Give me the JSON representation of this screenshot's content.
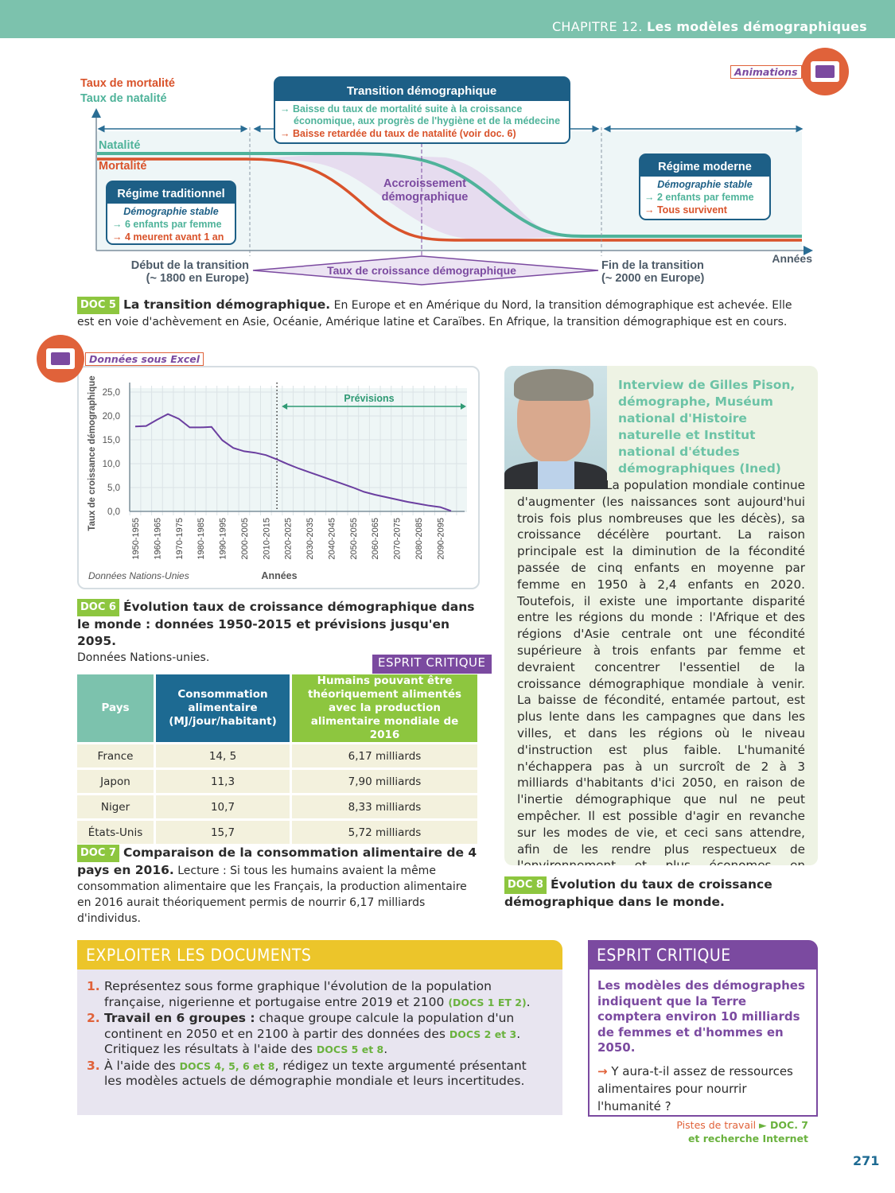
{
  "header": {
    "chapter": "CHAPITRE 12.",
    "title": "Les modèles démographiques"
  },
  "doc5": {
    "animations_label": "Animations",
    "legend_mortality": "Taux de mortalité",
    "legend_natality": "Taux de natalité",
    "natalite": "Natalité",
    "mortalite": "Mortalité",
    "transition_title": "Transition démographique",
    "transition_l1": "→ Baisse du taux de mortalité suite à la croissance",
    "transition_l2": "économique, aux progrès de l'hygiène et de la médecine",
    "transition_l3": "→ Baisse retardée du taux de natalité (voir doc. 6)",
    "trad_title": "Régime traditionnel",
    "trad_l1": "Démographie stable",
    "trad_l2": "→ 6 enfants par femme",
    "trad_l3": "→ 4 meurent avant 1 an",
    "mod_title": "Régime moderne",
    "mod_l1": "Démographie stable",
    "mod_l2": "→ 2 enfants par femme",
    "mod_l3": "→ Tous survivent",
    "accroissement_1": "Accroissement",
    "accroissement_2": "démographique",
    "debut_1": "Début de la transition",
    "debut_2": "(~ 1800 en Europe)",
    "fin_1": "Fin de la transition",
    "fin_2": "(~ 2000 en Europe)",
    "taux_croissance": "Taux de croissance démographique",
    "annees": "Années",
    "badge": "DOC 5",
    "caption_title": "La transition démographique.",
    "caption_text": " En Europe et en Amérique du Nord, la transition démographique est achevée. Elle est en voie d'achèvement en Asie, Océanie, Amérique latine et Caraïbes. En Afrique, la transition démographique est en cours."
  },
  "doc6": {
    "excel_label": "Données sous Excel",
    "source": "Données Nations-Unies",
    "badge": "DOC 6",
    "caption_title": "Évolution taux de croissance démographique dans le monde : données 1950-2015 et prévisions jusqu'en 2095.",
    "caption_text": "Données Nations-unies."
  },
  "chart_data": {
    "type": "line",
    "xlabel": "Années",
    "ylabel": "Taux de croissance démographique",
    "ylim": [
      0,
      25
    ],
    "yticks": [
      "0,0",
      "5,0",
      "10,0",
      "15,0",
      "20,0",
      "25,0"
    ],
    "x": [
      "1950-1955",
      "1955-1960",
      "1960-1965",
      "1965-1970",
      "1970-1975",
      "1975-1980",
      "1980-1985",
      "1985-1990",
      "1990-1995",
      "1995-2000",
      "2000-2005",
      "2005-2010",
      "2010-2015",
      "2015-2020",
      "2020-2025",
      "2025-2030",
      "2030-2035",
      "2035-2040",
      "2040-2045",
      "2045-2050",
      "2050-2055",
      "2055-2060",
      "2060-2065",
      "2065-2070",
      "2070-2075",
      "2075-2080",
      "2080-2085",
      "2085-2090",
      "2090-2095",
      "2095-2100"
    ],
    "xtick_labels": [
      "1950-1955",
      "1960-1965",
      "1970-1975",
      "1980-1985",
      "1990-1995",
      "2000-2005",
      "2010-2015",
      "2020-2025",
      "2030-2035",
      "2040-2045",
      "2050-2055",
      "2060-2065",
      "2070-2075",
      "2080-2085",
      "2090-2095"
    ],
    "values": [
      17.8,
      17.9,
      19.2,
      20.4,
      19.4,
      17.6,
      17.6,
      17.7,
      14.9,
      13.3,
      12.6,
      12.3,
      11.8,
      10.9,
      9.9,
      9.0,
      8.2,
      7.4,
      6.6,
      5.8,
      5.0,
      4.1,
      3.5,
      3.0,
      2.5,
      2.0,
      1.6,
      1.2,
      0.9,
      0.1
    ],
    "forecast_label": "Prévisions",
    "forecast_from": "2015",
    "grid": true,
    "line_color": "#6b3fa0"
  },
  "doc7": {
    "esprit_label": "ESPRIT CRITIQUE",
    "headers": [
      "Pays",
      "Consommation alimentaire (MJ/jour/habitant)",
      "Humains pouvant être théoriquement alimentés avec la production alimentaire mondiale de 2016"
    ],
    "rows": [
      [
        "France",
        "14, 5",
        "6,17 milliards"
      ],
      [
        "Japon",
        "11,3",
        "7,90 milliards"
      ],
      [
        "Niger",
        "10,7",
        "8,33 milliards"
      ],
      [
        "États-Unis",
        "15,7",
        "5,72 milliards"
      ]
    ],
    "badge": "DOC 7",
    "caption_title": "Comparaison de la consommation alimentaire de 4 pays en 2016.",
    "caption_text": " Lecture : Si tous les humains avaient la même consommation alimentaire que les Français, la production alimentaire en 2016 aurait théoriquement permis de nourrir 6,17 milliards d'individus."
  },
  "doc8": {
    "title": "Interview de Gilles Pison, démographe, Muséum national d'Histoire naturelle et Institut national d'études démographiques (Ined)",
    "text": "La population mondiale continue d'augmenter (les naissances sont aujourd'hui trois fois plus nombreuses que les décès), sa croissance décélère pourtant. La raison principale est la diminution de la fécondité passée de cinq enfants en moyenne par femme en 1950 à 2,4 enfants en 2020. Toutefois, il existe une importante disparité entre les régions du monde : l'Afrique et des régions d'Asie centrale ont une fécondité supérieure à trois enfants par femme et devraient concentrer l'essentiel de la croissance démographique mondiale à venir. La baisse de fécondité, entamée partout, est plus lente dans les campagnes que dans les villes, et dans les régions où le niveau d'instruction est plus faible. L'humanité n'échappera pas à un surcroît de 2 à 3 milliards d'habitants d'ici 2050, en raison de l'inertie démographique que nul ne peut empêcher. Il est possible d'agir en revanche sur les modes de vie, et ceci sans attendre, afin de les rendre plus respectueux de l'environnement et plus économes en ressources. La vraie question, celle dont dépend la survie de l'espèce humaine à terme, est finalement moins celle du nombre que celle des modes de vie.",
    "badge": "DOC 8",
    "caption_title": "Évolution du taux de croissance démographique dans le monde."
  },
  "exploiter": {
    "title": "EXPLOITER LES DOCUMENTS",
    "items": [
      {
        "n": "1.",
        "a": "Représentez sous forme graphique l'évolution de la population française, nigerienne et portugaise entre 2019 et 2100 ",
        "r1": "(DOCS 1 ET 2)",
        "b": "."
      },
      {
        "n": "2.",
        "bold": "Travail en 6 groupes :",
        "a": " chaque groupe calcule la population d'un continent en 2050 et en 2100 à partir des données des ",
        "r1": "DOCS 2 et 3",
        "b": ". Critiquez les résultats à l'aide des ",
        "r2": "DOCS 5 et 8",
        "c": "."
      },
      {
        "n": "3.",
        "a": "À l'aide des ",
        "r1": "DOCS 4, 5, 6 et 8",
        "b": ", rédigez un texte argumenté présentant les modèles actuels de démographie mondiale et leurs incertitudes."
      }
    ]
  },
  "esprit": {
    "title": "ESPRIT CRITIQUE",
    "statement": "Les modèles des démographes indiquent que la Terre comptera environ 10 milliards de femmes et d'hommes en 2050.",
    "arrow": "→",
    "question": " Y aura-t-il assez de ressources alimentaires pour nourrir l'humanité ?",
    "pistes": "Pistes de travail",
    "pistes_ref": "► DOC. 7",
    "pistes_ref2": "et recherche Internet"
  },
  "page_number": "271",
  "colors": {
    "teal": "#7cc2ad",
    "navy": "#1d5f86",
    "orange": "#e0623a",
    "purple": "#7b4aa0",
    "green": "#8dc63f",
    "yellow": "#ecc52a"
  }
}
